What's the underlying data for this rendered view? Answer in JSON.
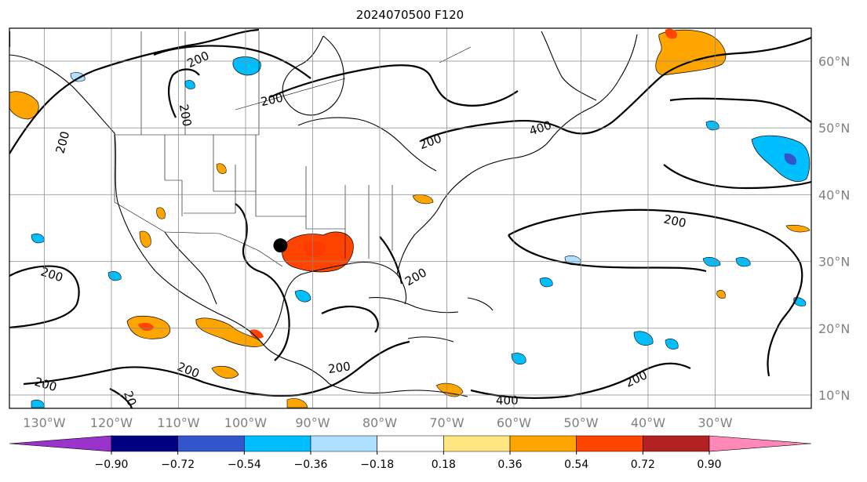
{
  "title": "2024070500 F120",
  "lon_labels": [
    "130°W",
    "120°W",
    "110°W",
    "100°W",
    "90°W",
    "80°W",
    "70°W",
    "60°W",
    "50°W",
    "40°W",
    "30°W"
  ],
  "lat_labels": [
    "60°N",
    "50°N",
    "40°N",
    "30°N",
    "20°N",
    "10°N"
  ],
  "contour_labels": [
    "200",
    "200",
    "200",
    "200",
    "200",
    "200",
    "200",
    "200",
    "200",
    "200",
    "200",
    "200",
    "400",
    "400",
    "20"
  ],
  "colorbar": {
    "ticks": [
      "−0.90",
      "−0.72",
      "−0.54",
      "−0.36",
      "−0.18",
      "0.18",
      "0.36",
      "0.54",
      "0.72",
      "0.90"
    ],
    "colors": [
      "#9933cc",
      "#000080",
      "#3355cc",
      "#00bfff",
      "#aee0ff",
      "#ffffff",
      "#ffe680",
      "#ffa500",
      "#ff4400",
      "#b22222",
      "#ff88b8"
    ]
  },
  "marker": {
    "lon": -94.8,
    "lat": 32.4,
    "color": "#000000"
  }
}
